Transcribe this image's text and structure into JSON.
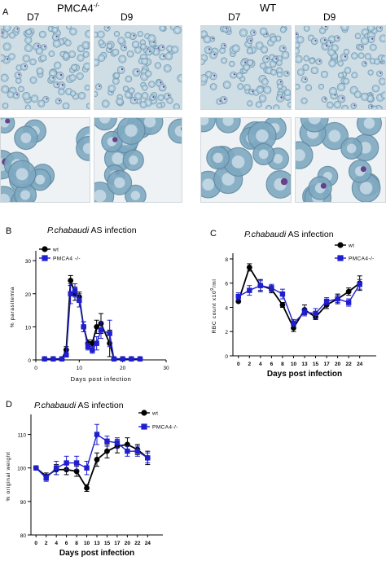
{
  "panel_a": {
    "letter": "A",
    "groups": [
      {
        "title_main": "PMCA4",
        "title_sup": "-/-",
        "days": [
          "D7",
          "D9"
        ]
      },
      {
        "title_main": "WT",
        "title_sup": "",
        "days": [
          "D7",
          "D9"
        ]
      }
    ]
  },
  "colors": {
    "wt": "#000000",
    "pmca": "#1f1fd0",
    "rbc_low": "#a9c7d9",
    "rbc_high": "#7fa9c1",
    "background_low": "#cfdde5",
    "background_high": "#eef2f4",
    "parasite": "#6a3f8a"
  },
  "chart_data": [
    {
      "panel": "B",
      "type": "line",
      "title_italic": "P.chabaudi",
      "title_rest": " AS infection",
      "xlabel": "Days post infection",
      "ylabel": "% parasitemia",
      "xlim": [
        0,
        30
      ],
      "ylim": [
        0,
        32
      ],
      "xticks": [
        "0",
        "10",
        "20",
        "30"
      ],
      "yticks": [
        "0",
        "10",
        "20",
        "30"
      ],
      "xtick_values": [
        0,
        10,
        20,
        30
      ],
      "ytick_values": [
        0,
        10,
        20,
        30
      ],
      "legend": "top-right",
      "series": [
        {
          "name": "wt",
          "marker": "circle",
          "x": [
            2,
            4,
            6,
            7,
            8,
            9,
            10,
            11,
            12,
            13,
            14,
            15,
            17,
            18,
            20,
            22,
            24
          ],
          "y": [
            0.3,
            0.3,
            0.3,
            3,
            24,
            20,
            19,
            10,
            5,
            5,
            10,
            11,
            5,
            0.3,
            0.3,
            0.3,
            0.3
          ],
          "err": [
            0,
            0,
            0,
            1,
            1.5,
            2,
            1.5,
            1.5,
            1,
            1,
            2,
            3,
            4,
            0,
            0,
            0,
            0
          ]
        },
        {
          "name": "PMCA4 -/-",
          "marker": "square",
          "x": [
            2,
            4,
            6,
            7,
            8,
            9,
            10,
            11,
            12,
            13,
            14,
            15,
            17,
            18,
            20,
            22,
            24
          ],
          "y": [
            0.3,
            0.3,
            0.3,
            1.5,
            20,
            21,
            18,
            10,
            4,
            3,
            5,
            9,
            8,
            0.3,
            0.3,
            0.3,
            0.3
          ],
          "err": [
            0,
            0,
            0,
            0.5,
            3,
            2,
            2,
            1.5,
            1,
            1,
            2,
            2.5,
            4,
            0,
            0,
            0,
            0
          ]
        }
      ]
    },
    {
      "panel": "C",
      "type": "line",
      "title_italic": "P.chabaudi",
      "title_rest": " AS infection",
      "xlabel": "Days post infection",
      "ylabel_main": "RBC count x10",
      "ylabel_sup": "9",
      "ylabel_tail": "/ml",
      "xlim": [
        -0.5,
        12.5
      ],
      "ylim": [
        0,
        8.2
      ],
      "categories": [
        "0",
        "2",
        "4",
        "6",
        "8",
        "10",
        "13",
        "15",
        "17",
        "20",
        "22",
        "24"
      ],
      "yticks": [
        "0",
        "2",
        "4",
        "6",
        "8"
      ],
      "ytick_values": [
        0,
        2,
        4,
        6,
        8
      ],
      "legend": "top-right",
      "series": [
        {
          "name": "wt",
          "marker": "circle",
          "y": [
            4.5,
            7.3,
            5.8,
            5.5,
            4.2,
            2.3,
            3.8,
            3.2,
            4.2,
            4.7,
            5.3,
            6.0
          ],
          "err": [
            0,
            0.3,
            0.5,
            0.3,
            0.2,
            0.3,
            0.4,
            0.2,
            0.3,
            0.4,
            0.3,
            0.6
          ]
        },
        {
          "name": "PMCA4-/-",
          "marker": "square",
          "y": [
            4.9,
            5.4,
            5.8,
            5.6,
            5.1,
            2.7,
            3.6,
            3.5,
            4.5,
            4.7,
            4.4,
            5.9
          ],
          "err": [
            0.3,
            0.4,
            0.4,
            0.3,
            0.4,
            0.3,
            0.3,
            0.4,
            0.3,
            0.3,
            0.3,
            0.4
          ]
        }
      ]
    },
    {
      "panel": "D",
      "type": "line",
      "title_italic": "P.chabaudi",
      "title_rest": " AS infection",
      "xlabel": "Days post infection",
      "ylabel": "% original weight",
      "xlim": [
        -0.5,
        12.5
      ],
      "ylim": [
        80,
        115
      ],
      "categories": [
        "0",
        "2",
        "4",
        "6",
        "8",
        "10",
        "13",
        "15",
        "17",
        "20",
        "22",
        "24"
      ],
      "yticks": [
        "80",
        "90",
        "100",
        "110"
      ],
      "ytick_values": [
        80,
        90,
        100,
        110
      ],
      "legend": "top-right",
      "series": [
        {
          "name": "wt",
          "marker": "circle",
          "y": [
            100,
            97.5,
            99.5,
            99.5,
            99,
            94,
            102.5,
            105,
            106.5,
            107,
            105.5,
            103
          ],
          "err": [
            0.5,
            1,
            1.5,
            1.5,
            1.5,
            1,
            2,
            2,
            2,
            2,
            1.5,
            2
          ]
        },
        {
          "name": "PMCA4-/-",
          "marker": "square",
          "y": [
            100,
            97,
            100,
            101.5,
            101.5,
            100,
            110,
            108,
            107.5,
            105,
            105,
            103
          ],
          "err": [
            0.5,
            1,
            2,
            2,
            2,
            2,
            3,
            1.5,
            1.5,
            1.5,
            1.5,
            1.5
          ]
        }
      ]
    }
  ]
}
